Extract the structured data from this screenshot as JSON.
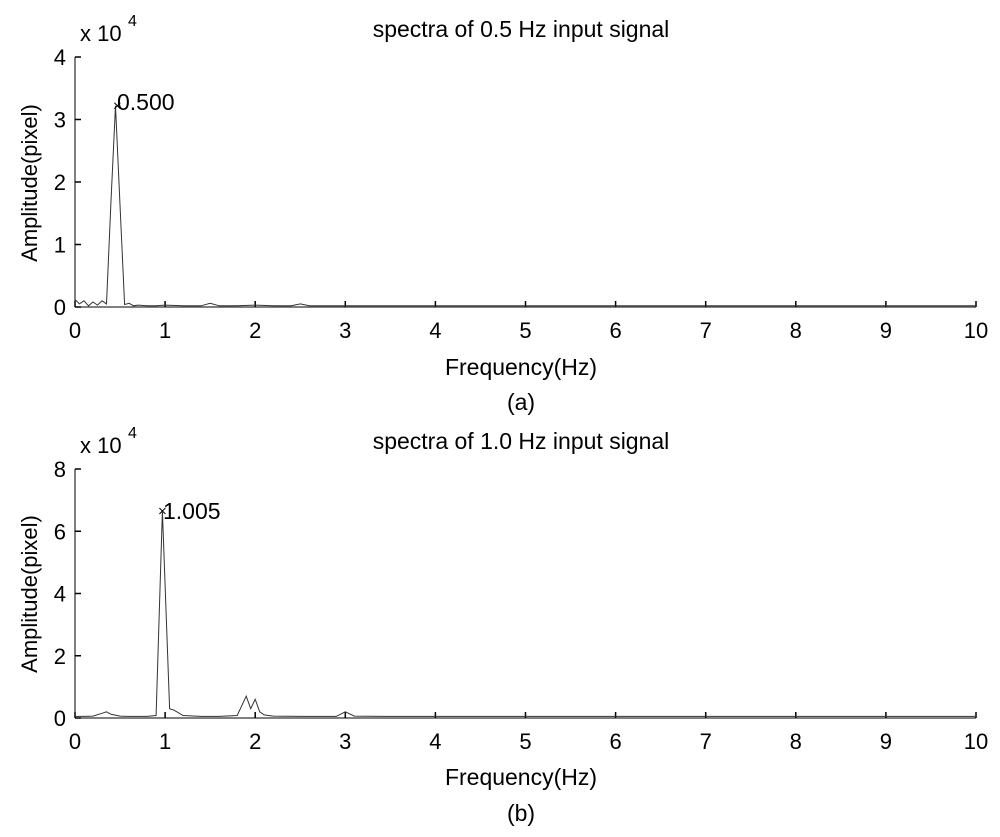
{
  "chart_data": [
    {
      "type": "line",
      "title": "spectra of 0.5 Hz input signal",
      "xlabel": "Frequency(Hz)",
      "ylabel": "Amplitude(pixel)",
      "caption": "(a)",
      "xlim": [
        0,
        10
      ],
      "ylim": [
        0,
        4
      ],
      "y_multiplier": "x 10",
      "y_multiplier_exp": "4",
      "x_ticks": [
        0,
        1,
        2,
        3,
        4,
        5,
        6,
        7,
        8,
        9,
        10
      ],
      "y_ticks": [
        0,
        1,
        2,
        3,
        4
      ],
      "peak_label": "0.500",
      "peak": {
        "x": 0.47,
        "y": 3.22
      },
      "grid": false,
      "series": [
        {
          "x": [
            0,
            0.05,
            0.1,
            0.15,
            0.2,
            0.25,
            0.3,
            0.35,
            0.4,
            0.45,
            0.5,
            0.55,
            0.6,
            0.65,
            0.7,
            0.8,
            0.9,
            1.0,
            1.2,
            1.4,
            1.5,
            1.6,
            1.8,
            2.0,
            2.2,
            2.4,
            2.5,
            2.6,
            2.8,
            3.0,
            4.0,
            5.0,
            6.0,
            7.0,
            8.0,
            9.0,
            10.0
          ],
          "y": [
            0.12,
            0.05,
            0.1,
            0.02,
            0.08,
            0.03,
            0.1,
            0.05,
            1.7,
            3.22,
            1.6,
            0.04,
            0.06,
            0.02,
            0.03,
            0.02,
            0.02,
            0.03,
            0.02,
            0.02,
            0.06,
            0.02,
            0.02,
            0.03,
            0.02,
            0.02,
            0.05,
            0.02,
            0.02,
            0.02,
            0.02,
            0.02,
            0.02,
            0.02,
            0.02,
            0.02,
            0.02
          ]
        }
      ]
    },
    {
      "type": "line",
      "title": "spectra of 1.0 Hz input signal",
      "xlabel": "Frequency(Hz)",
      "ylabel": "Amplitude(pixel)",
      "caption": "(b)",
      "xlim": [
        0,
        10
      ],
      "ylim": [
        0,
        8
      ],
      "y_multiplier": "x 10",
      "y_multiplier_exp": "4",
      "x_ticks": [
        0,
        1,
        2,
        3,
        4,
        5,
        6,
        7,
        8,
        9,
        10
      ],
      "y_ticks": [
        0,
        2,
        4,
        6,
        8
      ],
      "peak_label": "1.005",
      "peak": {
        "x": 0.97,
        "y": 6.65
      },
      "grid": false,
      "series": [
        {
          "x": [
            0,
            0.1,
            0.2,
            0.3,
            0.35,
            0.4,
            0.5,
            0.6,
            0.7,
            0.8,
            0.9,
            0.97,
            1.05,
            1.1,
            1.2,
            1.4,
            1.6,
            1.8,
            1.9,
            1.95,
            2.0,
            2.05,
            2.1,
            2.2,
            2.5,
            2.9,
            3.0,
            3.1,
            3.5,
            4.0,
            5.0,
            6.0,
            7.0,
            8.0,
            9.0,
            10.0
          ],
          "y": [
            0.05,
            0.05,
            0.06,
            0.15,
            0.2,
            0.12,
            0.06,
            0.05,
            0.05,
            0.05,
            0.08,
            6.65,
            0.3,
            0.25,
            0.08,
            0.05,
            0.05,
            0.08,
            0.7,
            0.3,
            0.6,
            0.2,
            0.1,
            0.06,
            0.05,
            0.05,
            0.2,
            0.06,
            0.05,
            0.05,
            0.05,
            0.05,
            0.05,
            0.05,
            0.05,
            0.05
          ]
        }
      ]
    }
  ]
}
